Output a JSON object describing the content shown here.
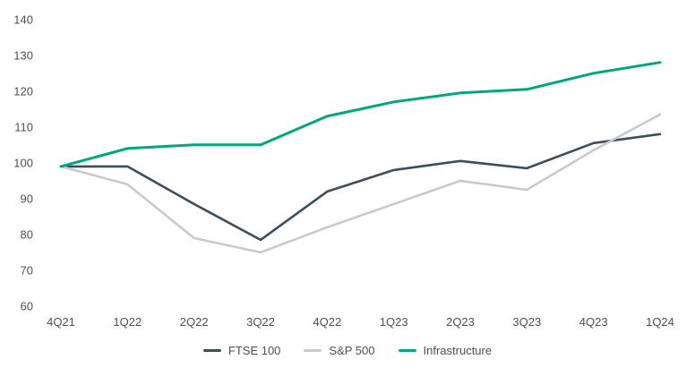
{
  "chart_data": {
    "type": "line",
    "title": "",
    "xlabel": "",
    "ylabel": "",
    "categories": [
      "4Q21",
      "1Q22",
      "2Q22",
      "3Q22",
      "4Q22",
      "1Q23",
      "2Q23",
      "3Q23",
      "4Q23",
      "1Q24"
    ],
    "series": [
      {
        "name": "FTSE 100",
        "color": "#3d4d5d",
        "stroke_width": 2.6,
        "values": [
          99,
          99,
          88.5,
          78.5,
          92,
          98,
          100.5,
          98.5,
          105.5,
          108
        ]
      },
      {
        "name": "S&P 500",
        "color": "#c9cacd",
        "stroke_width": 2.6,
        "values": [
          99,
          94,
          79,
          75,
          82,
          88.5,
          95,
          92.5,
          103.5,
          113.5
        ]
      },
      {
        "name": "Infrastructure",
        "color": "#00a77c",
        "stroke_width": 3,
        "values": [
          99,
          104,
          105,
          105,
          113,
          117,
          119.5,
          120.5,
          125,
          128
        ]
      }
    ],
    "ylim": [
      60,
      140
    ],
    "yticks": [
      60,
      70,
      80,
      90,
      100,
      110,
      120,
      130,
      140
    ],
    "grid": false,
    "axis_lines": false,
    "legend_position": "bottom-center"
  },
  "colors": {
    "text": "#4f4f4f",
    "background": "#ffffff"
  }
}
